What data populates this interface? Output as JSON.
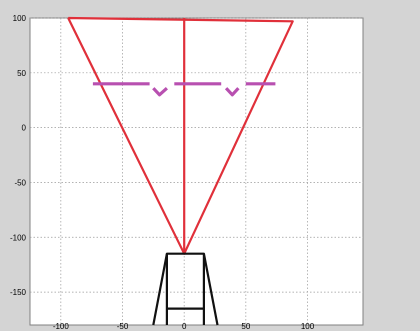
{
  "chart_data": {
    "type": "line",
    "title": "",
    "xlabel": "",
    "ylabel": "",
    "xlim": [
      -125,
      145
    ],
    "ylim": [
      -180,
      100
    ],
    "x_ticks": [
      -100,
      -50,
      0,
      50,
      100
    ],
    "y_ticks": [
      100,
      50,
      0,
      -50,
      -100,
      -150
    ],
    "grid": true,
    "series": [
      {
        "color": "#e0303a",
        "segments": [
          [
            [
              -94,
              100
            ],
            [
              88,
              97
            ],
            [
              0,
              -115
            ],
            [
              -94,
              100
            ]
          ],
          [
            [
              0,
              100
            ],
            [
              0,
              -115
            ]
          ]
        ]
      },
      {
        "color": "#b850b0",
        "segments": [
          [
            [
              -74,
              40
            ],
            [
              -28,
              40
            ]
          ],
          [
            [
              -25,
              36
            ],
            [
              -20,
              30
            ],
            [
              -14,
              36
            ]
          ],
          [
            [
              -8,
              40
            ],
            [
              30,
              40
            ]
          ],
          [
            [
              34,
              36
            ],
            [
              39,
              30
            ],
            [
              44,
              36
            ]
          ],
          [
            [
              50,
              40
            ],
            [
              74,
              40
            ]
          ]
        ]
      },
      {
        "color": "#111111",
        "segments": [
          [
            [
              -25,
              -180
            ],
            [
              -14,
              -115
            ],
            [
              16,
              -115
            ],
            [
              27,
              -180
            ]
          ],
          [
            [
              -14,
              -115
            ],
            [
              -14,
              -180
            ]
          ],
          [
            [
              16,
              -115
            ],
            [
              16,
              -180
            ]
          ],
          [
            [
              -14,
              -165
            ],
            [
              16,
              -165
            ]
          ]
        ]
      }
    ]
  }
}
